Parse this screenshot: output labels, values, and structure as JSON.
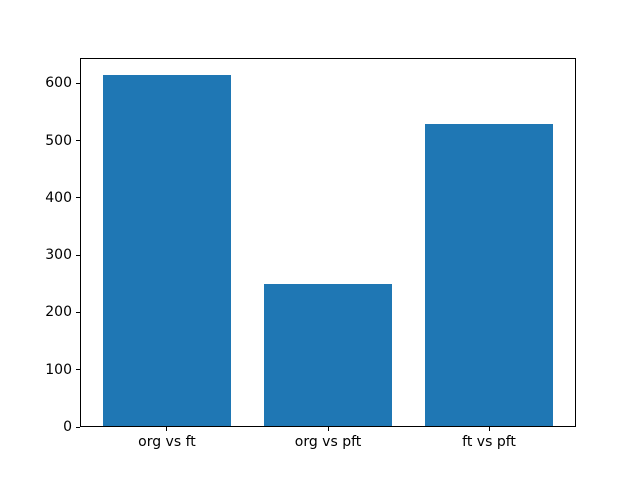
{
  "chart_data": {
    "type": "bar",
    "title": "",
    "categories": [
      "org vs ft",
      "org vs pft",
      "ft vs pft"
    ],
    "values": [
      613,
      247,
      527
    ],
    "ytick_values": [
      0,
      100,
      200,
      300,
      400,
      500,
      600
    ],
    "ytick_labels": [
      "0",
      "100",
      "200",
      "300",
      "400",
      "500",
      "600"
    ],
    "ylim": [
      0,
      644
    ],
    "xlim": [
      -0.54,
      2.54
    ],
    "bar_width_units": 0.8,
    "bar_color": "#1f77b4",
    "axis_color": "#000000",
    "background_color": "#ffffff",
    "grid": false,
    "legend": false,
    "xlabel": "",
    "ylabel": ""
  }
}
